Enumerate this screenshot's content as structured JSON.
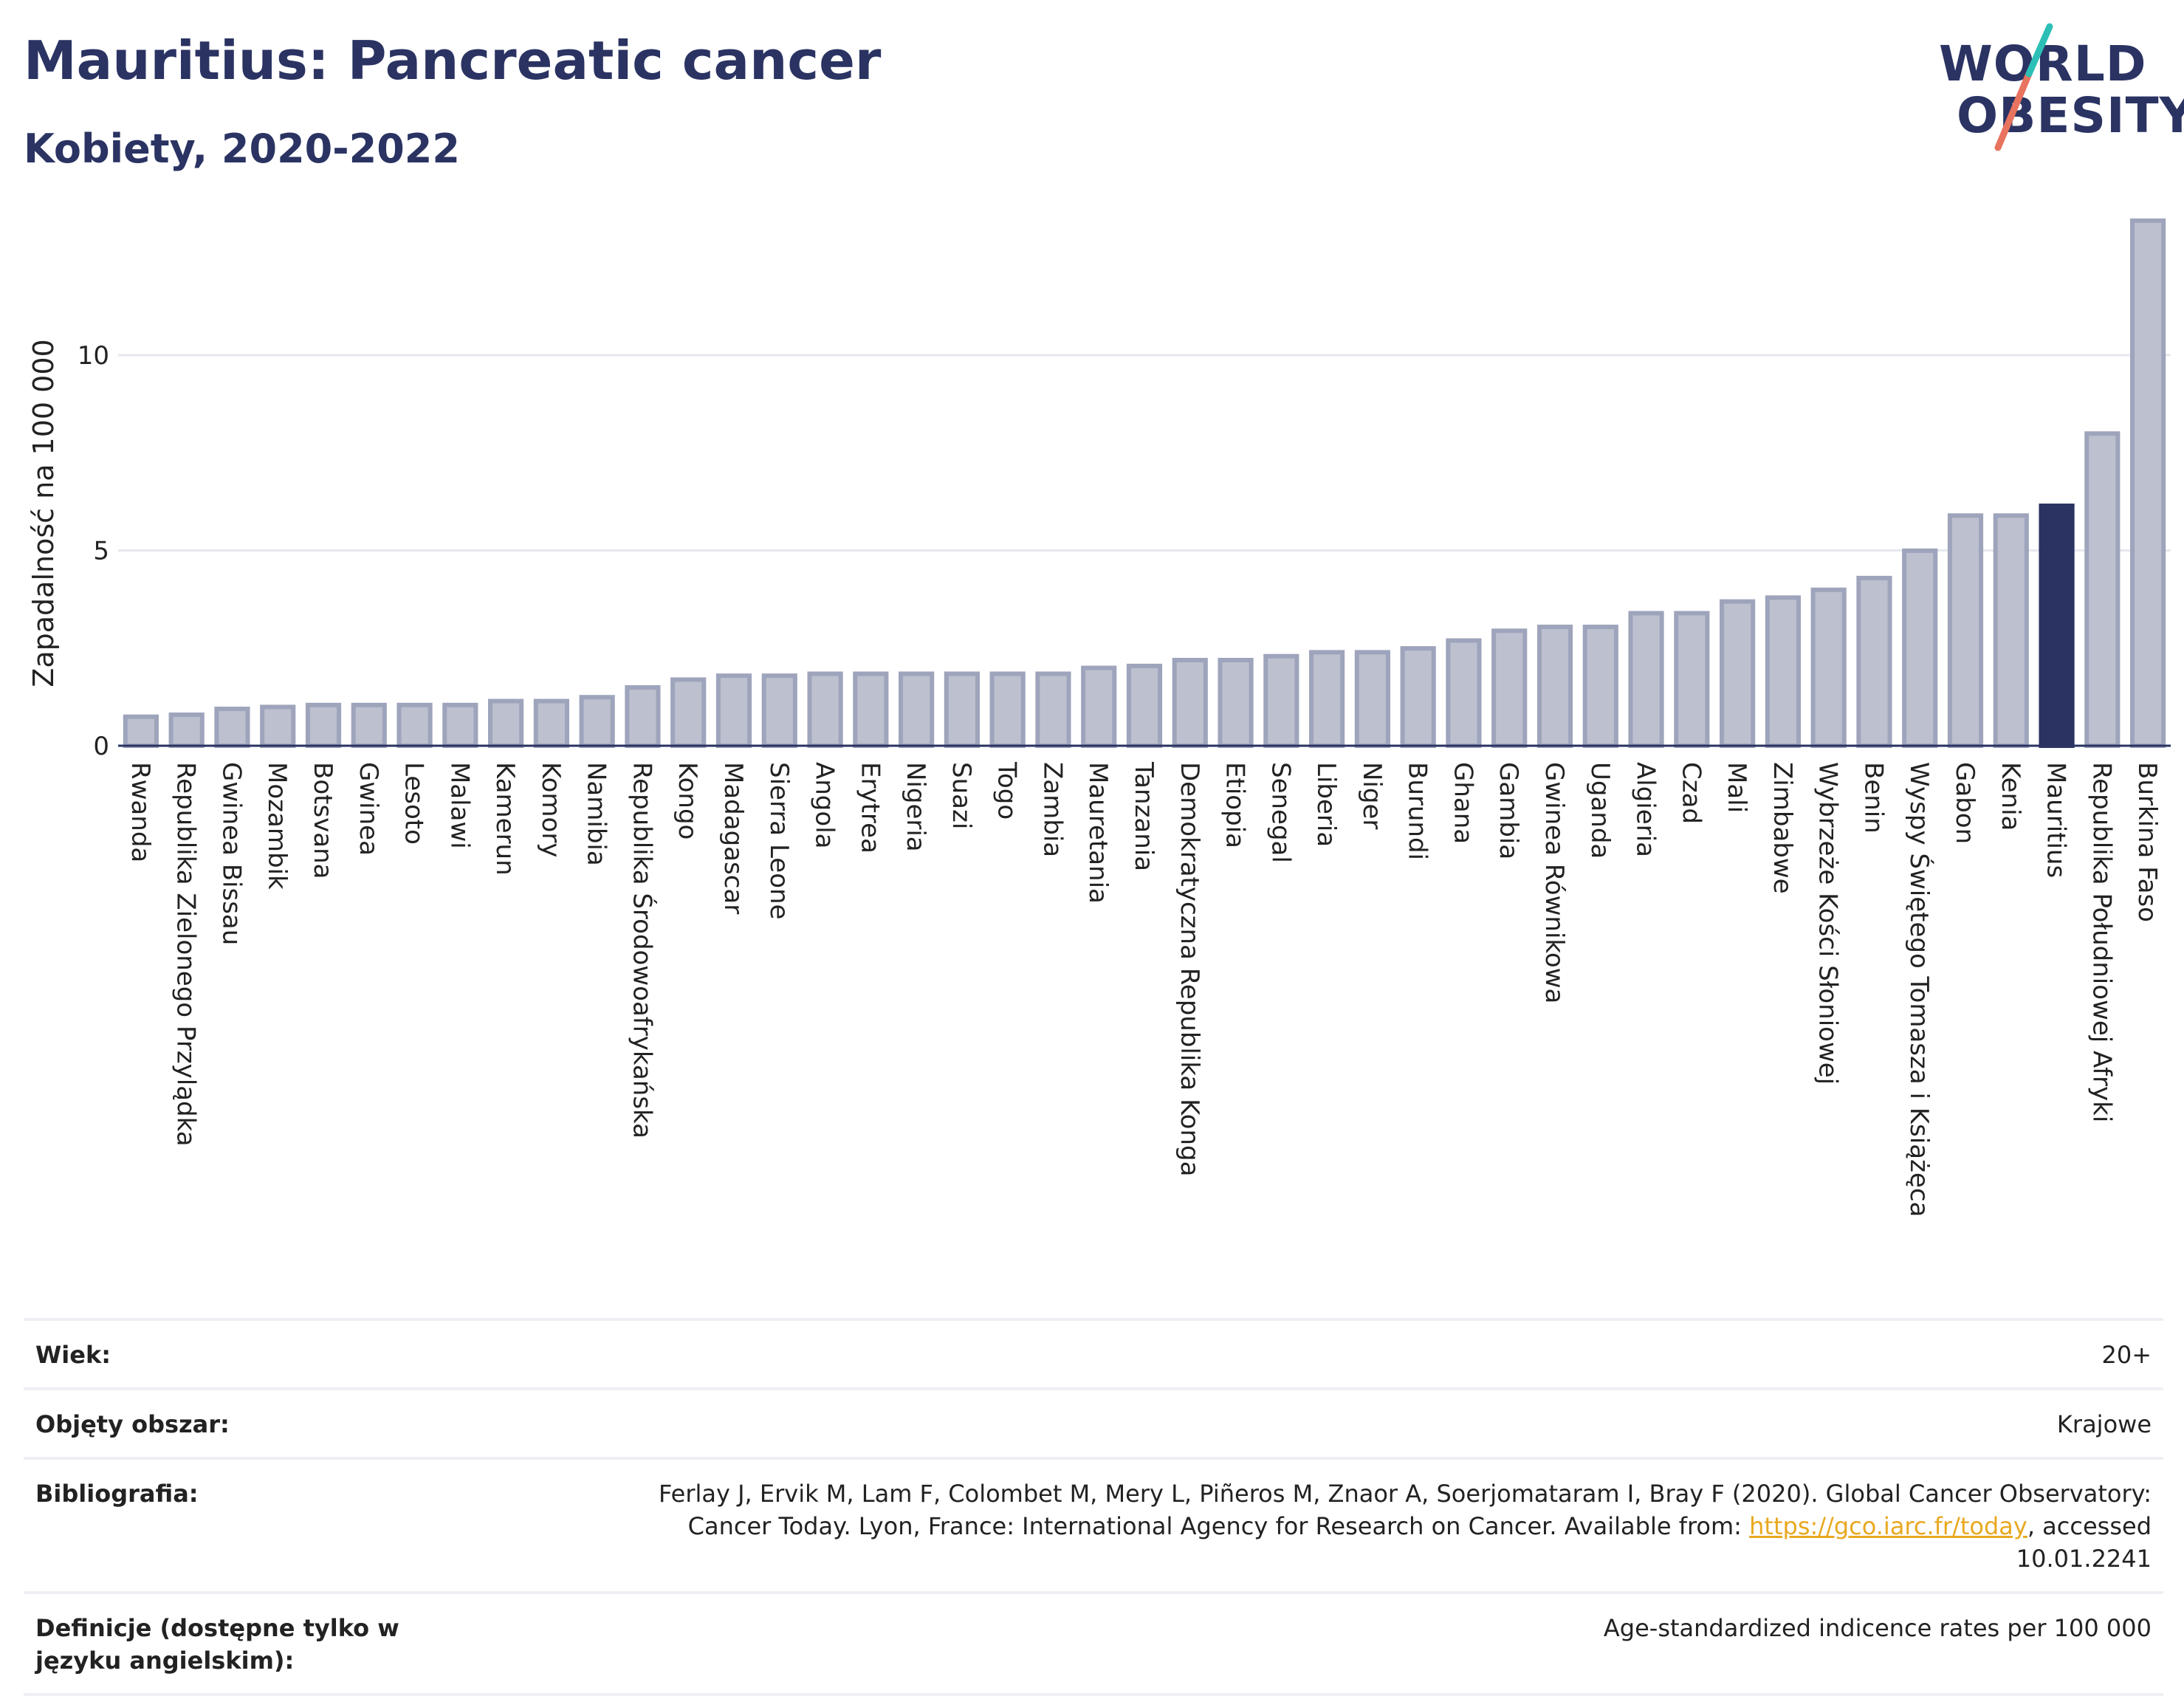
{
  "title": "Mauritius: Pancreatic cancer",
  "subtitle": "Kobiety, 2020-2022",
  "logo": {
    "line1": "WORLD",
    "line2": "OBESITY"
  },
  "colors": {
    "bar": "#bcc0cf",
    "bar_stroke": "#9ea4bb",
    "highlight": "#2a3362",
    "grid": "#e6e8ee",
    "title": "#2a3362",
    "link": "#e8a820"
  },
  "chart_data": {
    "type": "bar",
    "ylabel": "Zapadalność na 100 000",
    "yticks": [
      0,
      5,
      10
    ],
    "ylim": [
      0,
      13.8
    ],
    "highlight": "Mauritius",
    "categories": [
      "Rwanda",
      "Republika Zielonego Przylądka",
      "Gwinea Bissau",
      "Mozambik",
      "Botsvana",
      "Gwinea",
      "Lesoto",
      "Malawi",
      "Kamerun",
      "Komory",
      "Namibia",
      "Republika Środowoafrykańska",
      "Kongo",
      "Madagascar",
      "Sierra Leone",
      "Angola",
      "Erytrea",
      "Nigeria",
      "Suazi",
      "Togo",
      "Zambia",
      "Mauretania",
      "Tanzania",
      "Demokratyczna Republika Konga",
      "Etiopia",
      "Senegal",
      "Liberia",
      "Niger",
      "Burundi",
      "Ghana",
      "Gambia",
      "Gwinea Równikowa",
      "Uganda",
      "Algieria",
      "Czad",
      "Mali",
      "Zimbabwe",
      "Wybrzeże Kości Słoniowej",
      "Benin",
      "Wyspy Świętego Tomasza i Książęca",
      "Gabon",
      "Kenia",
      "Mauritius",
      "Republika Południowej Afryki",
      "Burkina Faso"
    ],
    "values": [
      0.8,
      0.85,
      1.0,
      1.05,
      1.1,
      1.1,
      1.1,
      1.1,
      1.2,
      1.2,
      1.3,
      1.55,
      1.75,
      1.85,
      1.85,
      1.9,
      1.9,
      1.9,
      1.9,
      1.9,
      1.9,
      2.05,
      2.1,
      2.25,
      2.25,
      2.35,
      2.45,
      2.45,
      2.55,
      2.75,
      3.0,
      3.1,
      3.1,
      3.45,
      3.45,
      3.75,
      3.85,
      4.05,
      4.35,
      5.05,
      5.95,
      5.95,
      6.2,
      8.05,
      13.5
    ]
  },
  "info": [
    {
      "label": "Wiek:",
      "value": "20+"
    },
    {
      "label": "Objęty obszar:",
      "value": "Krajowe"
    },
    {
      "label": "Bibliografia:",
      "value_pre": "Ferlay J, Ervik M, Lam F, Colombet M, Mery L, Piñeros M, Znaor A, Soerjomataram I, Bray F (2020). Global Cancer Observatory: Cancer Today. Lyon, France: International Agency for Research on Cancer. Available from: ",
      "link": "https://gco.iarc.fr/today",
      "value_post": ", accessed 10.01.2241"
    },
    {
      "label": "Definicje (dostępne tylko w języku angielskim):",
      "value": "Age-standardized indicence rates per 100 000"
    }
  ]
}
